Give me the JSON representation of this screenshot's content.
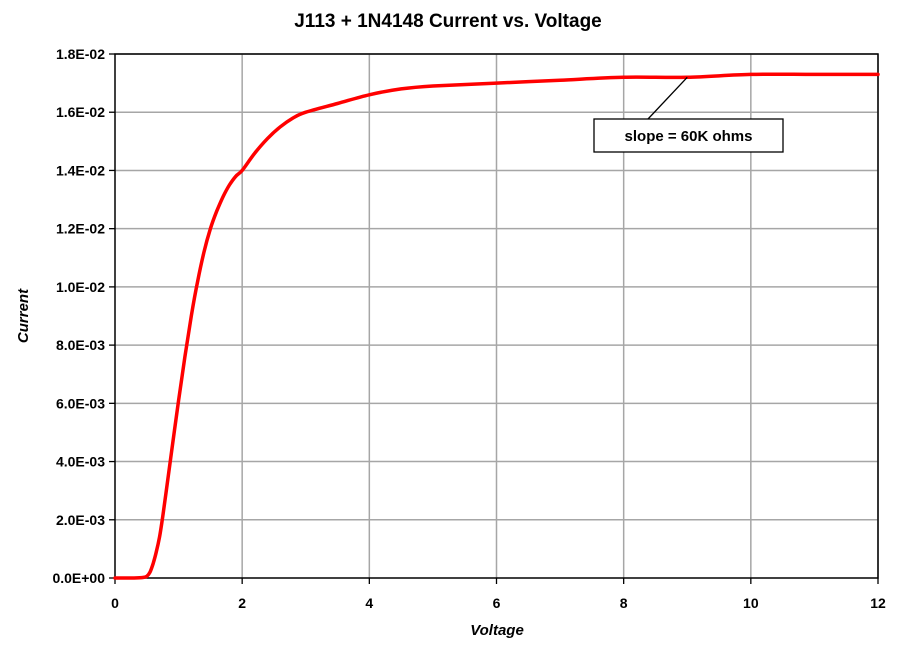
{
  "chart_data": {
    "type": "line",
    "title": "J113 + 1N4148    Current  vs.  Voltage",
    "xlabel": "Voltage",
    "ylabel": "Current",
    "xlim": [
      0,
      12
    ],
    "ylim": [
      0,
      0.018
    ],
    "x_ticks": [
      0,
      2,
      4,
      6,
      8,
      10,
      12
    ],
    "x_tick_labels": [
      "0",
      "2",
      "4",
      "6",
      "8",
      "10",
      "12"
    ],
    "y_ticks": [
      0,
      0.002,
      0.004,
      0.006,
      0.008,
      0.01,
      0.012,
      0.014,
      0.016,
      0.018
    ],
    "y_tick_labels": [
      "0.0E+00",
      "2.0E-03",
      "4.0E-03",
      "6.0E-03",
      "8.0E-03",
      "1.0E-02",
      "1.2E-02",
      "1.4E-02",
      "1.6E-02",
      "1.8E-02"
    ],
    "grid": true,
    "series": [
      {
        "color": "#ff0000",
        "x": [
          0,
          0.3,
          0.45,
          0.5,
          0.55,
          0.6,
          0.65,
          0.7,
          0.75,
          0.8,
          0.9,
          1.0,
          1.1,
          1.2,
          1.3,
          1.4,
          1.5,
          1.6,
          1.7,
          1.8,
          1.9,
          2.0,
          2.2,
          2.4,
          2.6,
          2.8,
          3.0,
          3.5,
          4.0,
          4.5,
          5.0,
          6.0,
          7.0,
          8.0,
          9.0,
          10.0,
          11.0,
          12.0
        ],
        "y": [
          0,
          0,
          2e-05,
          6e-05,
          0.0002,
          0.0005,
          0.0009,
          0.0014,
          0.0021,
          0.0029,
          0.0045,
          0.0061,
          0.0076,
          0.009,
          0.0102,
          0.0112,
          0.012,
          0.0126,
          0.0131,
          0.0135,
          0.0138,
          0.014,
          0.0146,
          0.0151,
          0.0155,
          0.0158,
          0.016,
          0.0163,
          0.0166,
          0.0168,
          0.0169,
          0.017,
          0.0171,
          0.0172,
          0.0172,
          0.0173,
          0.0173,
          0.0173
        ]
      }
    ],
    "annotation": {
      "text": "slope = 60K ohms",
      "points_to": [
        9.0,
        0.0172
      ]
    }
  },
  "colors": {
    "series": "#ff0000",
    "grid": "#a6a6a6",
    "axis": "#000000"
  }
}
